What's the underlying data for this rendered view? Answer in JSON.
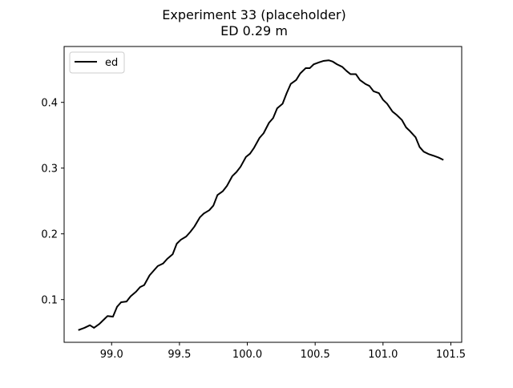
{
  "chart_data": {
    "type": "line",
    "title": "Experiment 33 (placeholder)",
    "subtitle": "ED 0.29 m",
    "xlabel": "",
    "ylabel": "",
    "xlim": [
      98.65,
      101.58
    ],
    "ylim": [
      0.035,
      0.485
    ],
    "xticks": [
      99.0,
      99.5,
      100.0,
      100.5,
      101.0,
      101.5
    ],
    "xtick_labels": [
      "99.0",
      "99.5",
      "100.0",
      "100.5",
      "101.0",
      "101.5"
    ],
    "yticks": [
      0.1,
      0.2,
      0.3,
      0.4
    ],
    "ytick_labels": [
      "0.1",
      "0.2",
      "0.3",
      "0.4"
    ],
    "grid": false,
    "legend": {
      "position": "top-left",
      "entries": [
        "ed"
      ]
    },
    "colors": {
      "line": "#000000",
      "axes": "#000000",
      "background": "#ffffff"
    },
    "series": [
      {
        "name": "ed",
        "x": [
          98.76,
          98.8,
          98.84,
          98.87,
          98.91,
          98.94,
          98.97,
          99.01,
          99.04,
          99.07,
          99.11,
          99.14,
          99.18,
          99.21,
          99.24,
          99.28,
          99.31,
          99.34,
          99.38,
          99.41,
          99.45,
          99.48,
          99.51,
          99.55,
          99.58,
          99.61,
          99.65,
          99.68,
          99.72,
          99.75,
          99.78,
          99.82,
          99.85,
          99.89,
          99.92,
          99.95,
          99.99,
          100.02,
          100.05,
          100.09,
          100.12,
          100.16,
          100.19,
          100.22,
          100.26,
          100.29,
          100.32,
          100.36,
          100.39,
          100.43,
          100.46,
          100.49,
          100.53,
          100.56,
          100.6,
          100.63,
          100.66,
          100.7,
          100.73,
          100.76,
          100.8,
          100.83,
          100.87,
          100.9,
          100.93,
          100.97,
          101.0,
          101.03,
          101.07,
          101.1,
          101.14,
          101.17,
          101.2,
          101.24,
          101.27,
          101.3,
          101.34,
          101.37,
          101.41,
          101.44
        ],
        "y": [
          0.054,
          0.057,
          0.061,
          0.057,
          0.063,
          0.069,
          0.075,
          0.074,
          0.089,
          0.096,
          0.097,
          0.105,
          0.112,
          0.119,
          0.122,
          0.137,
          0.144,
          0.151,
          0.155,
          0.162,
          0.169,
          0.185,
          0.191,
          0.196,
          0.203,
          0.211,
          0.225,
          0.231,
          0.236,
          0.243,
          0.259,
          0.265,
          0.273,
          0.288,
          0.294,
          0.302,
          0.317,
          0.322,
          0.331,
          0.346,
          0.353,
          0.369,
          0.376,
          0.391,
          0.398,
          0.414,
          0.428,
          0.434,
          0.444,
          0.452,
          0.452,
          0.458,
          0.461,
          0.463,
          0.464,
          0.462,
          0.458,
          0.454,
          0.448,
          0.443,
          0.443,
          0.434,
          0.428,
          0.425,
          0.417,
          0.414,
          0.404,
          0.398,
          0.386,
          0.381,
          0.373,
          0.362,
          0.356,
          0.347,
          0.332,
          0.325,
          0.321,
          0.319,
          0.316,
          0.313
        ]
      }
    ]
  }
}
